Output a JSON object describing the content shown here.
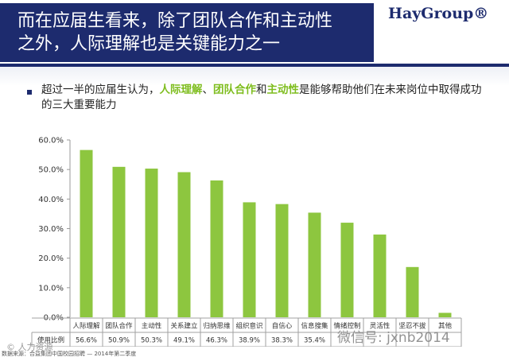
{
  "header": {
    "title_line1": "而在应届生看来，除了团队合作和主动性",
    "title_line2": "之外，人际理解也是关键能力之一",
    "logo": "HayGroup®"
  },
  "bullet": {
    "part1": "超过一半的应届生认为，",
    "hl1": "人际理解",
    "sep1": "、",
    "hl2": "团队合作",
    "sep2": "和",
    "hl3": "主动性",
    "part2": "是能够帮助他们在未来岗位中取得成功的三大重要能力"
  },
  "chart_data": {
    "type": "bar",
    "categories": [
      "人际理解",
      "团队合作",
      "主动性",
      "关系建立",
      "归纳思维",
      "组织意识",
      "自信心",
      "信息搜集",
      "情绪控制",
      "灵活性",
      "坚忍不拔",
      "其他"
    ],
    "values": [
      56.6,
      50.9,
      50.3,
      49.1,
      46.3,
      38.9,
      38.3,
      35.4,
      32.0,
      28.0,
      17.0,
      1.5
    ],
    "value_labels": [
      "56.6%",
      "50.9%",
      "50.3%",
      "49.1%",
      "46.3%",
      "38.9%",
      "38.3%",
      "35.4%",
      "",
      "",
      "",
      ""
    ],
    "row_label": "使用比例",
    "ylim": [
      0,
      60
    ],
    "yticks": [
      "0.0%",
      "10.0%",
      "20.0%",
      "30.0%",
      "40.0%",
      "50.0%",
      "60.0%"
    ],
    "bar_color": "#8dc63f",
    "grid": false
  },
  "footnote": "数据来源：合益集团中国校园招聘 — 2014年第二季度",
  "watermark_left": "© 人力资源",
  "watermark_right": "微信号: jxnb2014"
}
